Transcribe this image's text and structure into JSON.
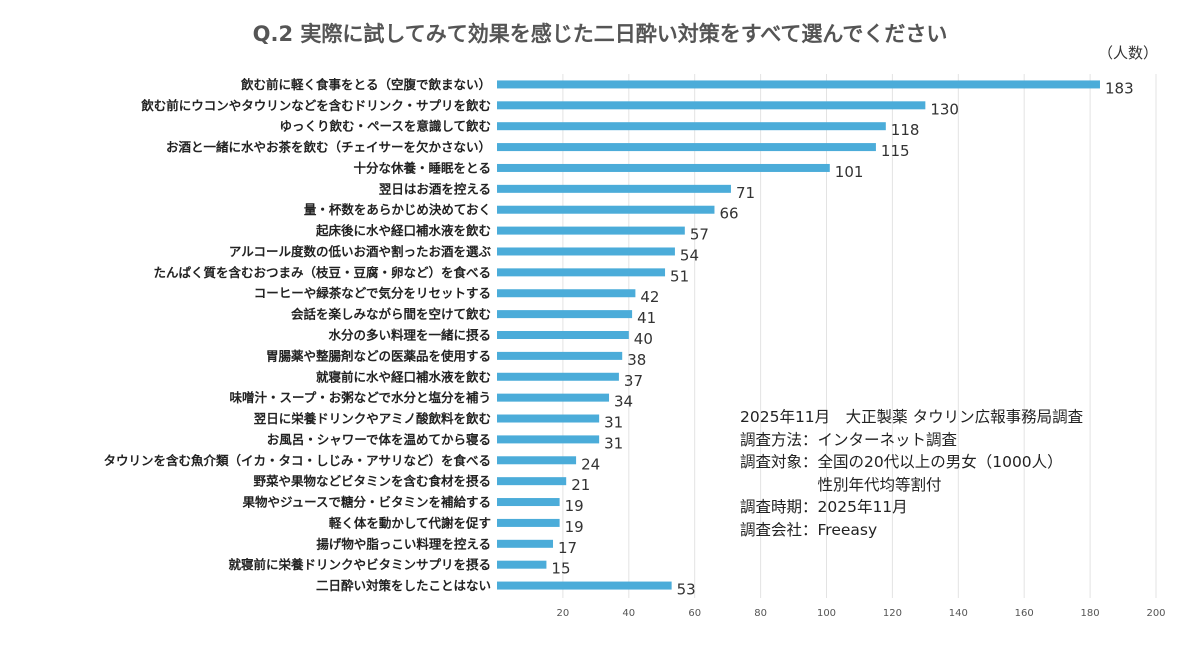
{
  "title": "Q.2 実際に試してみて効果を感じた二日酔い対策をすべて選んでください",
  "unit": "（人数）",
  "note": {
    "line1": "2025年11月　大正製薬 タウリン広報事務局調査",
    "line2": "調査方法：インターネット調査",
    "line3": "調査対象：全国の20代以上の男女（1000人）",
    "line4": "　　　　　性別年代均等割付",
    "line5": "調査時期：2025年11月",
    "line6": "調査会社：Freeasy"
  },
  "chart_data": {
    "type": "bar",
    "orientation": "horizontal",
    "bar_color": "#4bacd9",
    "grid": true,
    "xlim": [
      0,
      200
    ],
    "xticks": [
      20,
      40,
      60,
      80,
      100,
      120,
      140,
      160,
      180,
      200
    ],
    "categories": [
      "飲む前に軽く食事をとる（空腹で飲まない）",
      "飲む前にウコンやタウリンなどを含むドリンク・サプリを飲む",
      "ゆっくり飲む・ペースを意識して飲む",
      "お酒と一緒に水やお茶を飲む（チェイサーを欠かさない）",
      "十分な休養・睡眠をとる",
      "翌日はお酒を控える",
      "量・杯数をあらかじめ決めておく",
      "起床後に水や経口補水液を飲む",
      "アルコール度数の低いお酒や割ったお酒を選ぶ",
      "たんぱく質を含むおつまみ（枝豆・豆腐・卵など）を食べる",
      "コーヒーや緑茶などで気分をリセットする",
      "会話を楽しみながら間を空けて飲む",
      "水分の多い料理を一緒に摂る",
      "胃腸薬や整腸剤などの医薬品を使用する",
      "就寝前に水や経口補水液を飲む",
      "味噌汁・スープ・お粥などで水分と塩分を補う",
      "翌日に栄養ドリンクやアミノ酸飲料を飲む",
      "お風呂・シャワーで体を温めてから寝る",
      "タウリンを含む魚介類（イカ・タコ・しじみ・アサリなど）を食べる",
      "野菜や果物などビタミンを含む食材を摂る",
      "果物やジュースで糖分・ビタミンを補給する",
      "軽く体を動かして代謝を促す",
      "揚げ物や脂っこい料理を控える",
      "就寝前に栄養ドリンクやビタミンサプリを摂る",
      "二日酔い対策をしたことはない"
    ],
    "values": [
      183,
      130,
      118,
      115,
      101,
      71,
      66,
      57,
      54,
      51,
      42,
      41,
      40,
      38,
      37,
      34,
      31,
      31,
      24,
      21,
      19,
      19,
      17,
      15,
      53
    ]
  }
}
